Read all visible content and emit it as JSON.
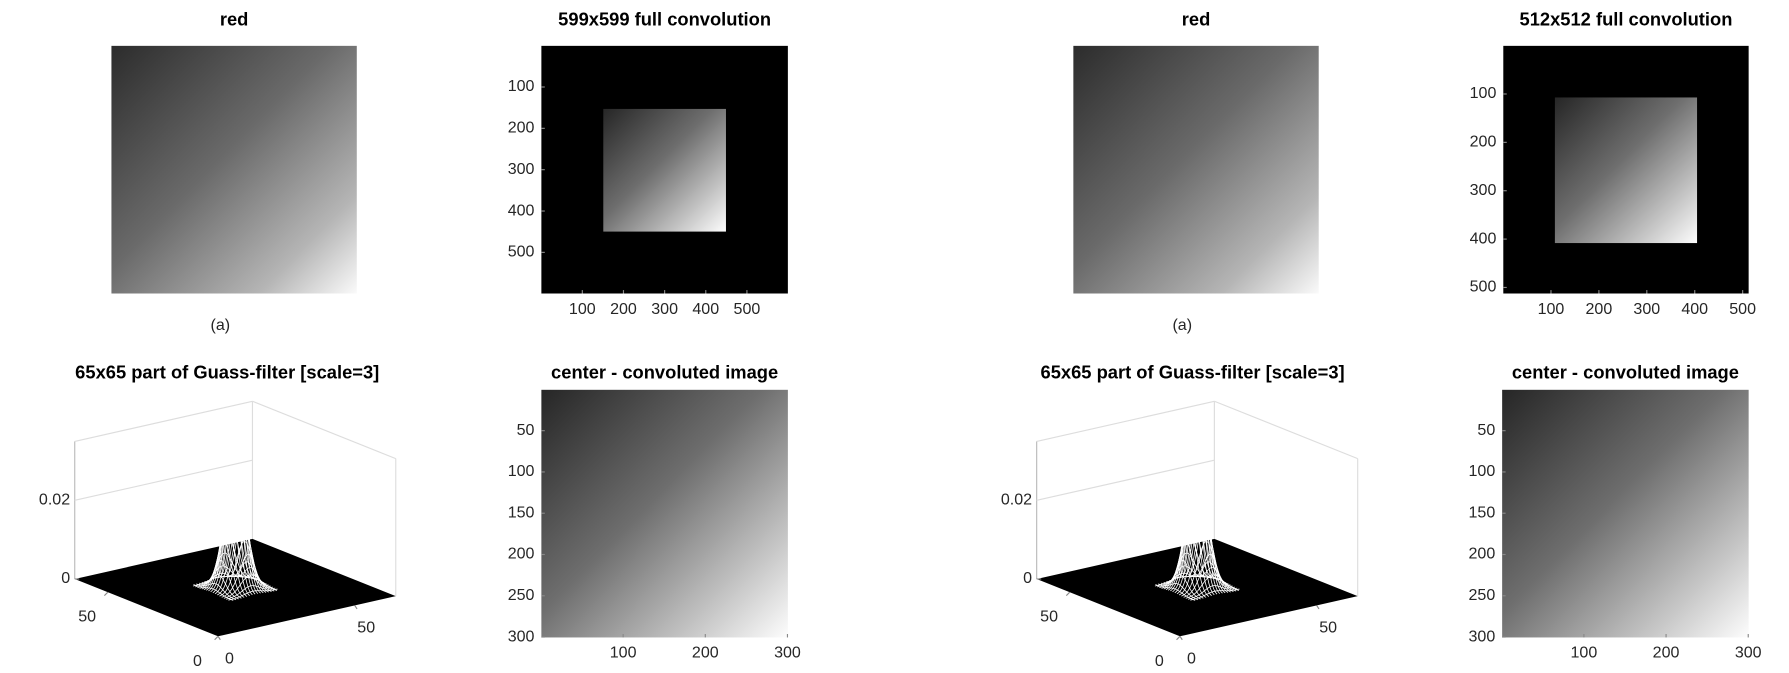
{
  "chart_data": [
    {
      "type": "image",
      "title": "red",
      "caption": "(a)"
    },
    {
      "type": "image",
      "title": "599x599 full convolution",
      "xlim": [
        0.5,
        599.5
      ],
      "ylim": [
        0.5,
        599.5
      ],
      "xticks": [
        100,
        200,
        300,
        400,
        500
      ],
      "yticks": [
        100,
        200,
        300,
        400,
        500
      ]
    },
    {
      "type": "surface",
      "title": "65x65 part of Guass-filter [scale=3]",
      "xlim": [
        0,
        65
      ],
      "ylim": [
        0,
        65
      ],
      "zlim": [
        0,
        0.035
      ],
      "xticks": [
        0,
        50
      ],
      "yticks": [
        0,
        50
      ],
      "zticks": [
        0,
        0.02
      ]
    },
    {
      "type": "image",
      "title": "center - convoluted image",
      "xlim": [
        0.5,
        300.5
      ],
      "ylim": [
        0.5,
        300.5
      ],
      "xticks": [
        100,
        200,
        300
      ],
      "yticks": [
        50,
        100,
        150,
        200,
        250,
        300
      ]
    },
    {
      "type": "image",
      "title": "red",
      "caption": "(a)"
    },
    {
      "type": "image",
      "title": "512x512 full convolution",
      "xlim": [
        0.5,
        512.5
      ],
      "ylim": [
        0.5,
        512.5
      ],
      "xticks": [
        100,
        200,
        300,
        400,
        500
      ],
      "yticks": [
        100,
        200,
        300,
        400,
        500
      ]
    },
    {
      "type": "surface",
      "title": "65x65 part of Guass-filter [scale=3]",
      "xlim": [
        0,
        65
      ],
      "ylim": [
        0,
        65
      ],
      "zlim": [
        0,
        0.035
      ],
      "xticks": [
        0,
        50
      ],
      "yticks": [
        0,
        50
      ],
      "zticks": [
        0,
        0.02
      ]
    },
    {
      "type": "image",
      "title": "center - convoluted image",
      "xlim": [
        0.5,
        300.5
      ],
      "ylim": [
        0.5,
        300.5
      ],
      "xticks": [
        100,
        200,
        300
      ],
      "yticks": [
        50,
        100,
        150,
        200,
        250,
        300
      ]
    }
  ]
}
